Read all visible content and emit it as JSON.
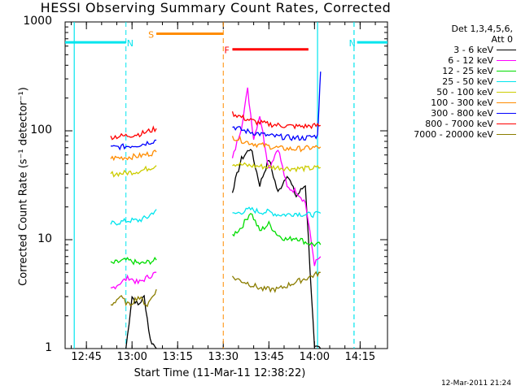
{
  "chart_data": {
    "type": "line",
    "title": "HESSI Observing Summary Count Rates, Corrected",
    "xlabel": "Start Time (11-Mar-11 12:38:22)",
    "ylabel": "Corrected Count Rate (s⁻¹ detector⁻¹)",
    "yscale": "log",
    "ylim": [
      1,
      1000
    ],
    "xlim": [
      "12:38",
      "14:24"
    ],
    "x_ticks": [
      "12:45",
      "13:00",
      "13:15",
      "13:30",
      "13:45",
      "14:00",
      "14:15"
    ],
    "y_ticks": [
      "1",
      "10",
      "100",
      "1000"
    ],
    "legend_placement": "outside-right",
    "legend_header": [
      "Det 1,3,4,5,6,",
      "Att 0"
    ],
    "series": [
      {
        "name": "3 - 6 keV",
        "color": "#000000",
        "segments": [
          {
            "x": [
              "12:58",
              "13:00",
              "13:02",
              "13:04",
              "13:06",
              "13:08"
            ],
            "y": [
              1,
              3,
              2.5,
              3,
              1.2,
              1
            ]
          },
          {
            "x": [
              "13:33",
              "13:36",
              "13:39",
              "13:42",
              "13:45",
              "13:48",
              "13:51",
              "13:54",
              "13:57",
              "14:00",
              "14:02"
            ],
            "y": [
              28,
              55,
              70,
              32,
              55,
              27,
              40,
              25,
              32,
              1,
              1
            ]
          }
        ]
      },
      {
        "name": "6 - 12 keV",
        "color": "#ff00ff",
        "segments": [
          {
            "x": [
              "12:53",
              "12:56",
              "12:59",
              "13:02",
              "13:05",
              "13:08"
            ],
            "y": [
              3.5,
              4,
              4.5,
              4,
              4.5,
              5
            ]
          },
          {
            "x": [
              "13:33",
              "13:36",
              "13:38",
              "13:40",
              "13:42",
              "13:45",
              "13:48",
              "13:51",
              "13:54",
              "13:57",
              "14:00",
              "14:02"
            ],
            "y": [
              55,
              110,
              240,
              85,
              140,
              45,
              70,
              30,
              28,
              22,
              6,
              7
            ]
          }
        ]
      },
      {
        "name": "12 - 25 keV",
        "color": "#00dd00",
        "segments": [
          {
            "x": [
              "12:53",
              "12:58",
              "13:03",
              "13:08"
            ],
            "y": [
              6,
              6.5,
              6,
              6.5
            ]
          },
          {
            "x": [
              "13:33",
              "13:36",
              "13:39",
              "13:42",
              "13:45",
              "13:48",
              "13:51",
              "13:54",
              "13:57",
              "14:00",
              "14:02"
            ],
            "y": [
              11,
              13,
              18,
              12,
              14,
              11,
              10,
              10.5,
              9.5,
              9,
              9
            ]
          }
        ]
      },
      {
        "name": "25 - 50 keV",
        "color": "#00e5ee",
        "segments": [
          {
            "x": [
              "12:53",
              "12:56",
              "12:59",
              "13:02",
              "13:05",
              "13:08"
            ],
            "y": [
              14,
              14.5,
              15,
              15,
              16,
              19
            ]
          },
          {
            "x": [
              "13:33",
              "13:36",
              "13:39",
              "13:42",
              "13:45",
              "13:48",
              "13:51",
              "13:54",
              "13:57",
              "14:00",
              "14:02"
            ],
            "y": [
              17,
              18,
              19,
              18,
              18,
              17,
              17,
              17.5,
              17,
              17,
              17.5
            ]
          }
        ]
      },
      {
        "name": "50 - 100 keV",
        "color": "#cccc00",
        "segments": [
          {
            "x": [
              "12:53",
              "12:58",
              "13:03",
              "13:08"
            ],
            "y": [
              40,
              41,
              43,
              48
            ]
          },
          {
            "x": [
              "13:33",
              "13:38",
              "13:43",
              "13:48",
              "13:53",
              "13:58",
              "14:02"
            ],
            "y": [
              50,
              48,
              47,
              46,
              45,
              45,
              46
            ]
          }
        ]
      },
      {
        "name": "100 - 300 keV",
        "color": "#ff8c00",
        "segments": [
          {
            "x": [
              "12:53",
              "12:58",
              "13:03",
              "13:08"
            ],
            "y": [
              56,
              57,
              59,
              64
            ]
          },
          {
            "x": [
              "13:33",
              "13:37",
              "13:41",
              "13:45",
              "13:49",
              "13:53",
              "13:57",
              "14:02"
            ],
            "y": [
              88,
              80,
              75,
              72,
              69,
              68,
              69,
              71
            ]
          }
        ]
      },
      {
        "name": "300 - 800 keV",
        "color": "#0000ff",
        "segments": [
          {
            "x": [
              "12:53",
              "12:58",
              "13:03",
              "13:08"
            ],
            "y": [
              70,
              72,
              75,
              82
            ]
          },
          {
            "x": [
              "13:33",
              "13:37",
              "13:41",
              "13:45",
              "13:49",
              "13:53",
              "13:57",
              "14:01",
              "14:02"
            ],
            "y": [
              110,
              100,
              95,
              90,
              88,
              86,
              86,
              90,
              350
            ]
          }
        ]
      },
      {
        "name": "800 - 7000 keV",
        "color": "#ff0000",
        "segments": [
          {
            "x": [
              "12:53",
              "12:58",
              "13:03",
              "13:08"
            ],
            "y": [
              88,
              90,
              94,
              105
            ]
          },
          {
            "x": [
              "13:33",
              "13:37",
              "13:41",
              "13:45",
              "13:49",
              "13:53",
              "13:57",
              "14:02"
            ],
            "y": [
              145,
              130,
              120,
              115,
              112,
              110,
              110,
              112
            ]
          }
        ]
      },
      {
        "name": "7000 - 20000 keV",
        "color": "#8b7d00",
        "segments": [
          {
            "x": [
              "12:53",
              "12:56",
              "12:59",
              "13:02",
              "13:05",
              "13:08"
            ],
            "y": [
              2.5,
              3,
              2.5,
              3,
              2.5,
              3.5
            ]
          },
          {
            "x": [
              "13:33",
              "13:38",
              "13:43",
              "13:48",
              "13:53",
              "13:58",
              "14:02"
            ],
            "y": [
              4.5,
              4,
              3.5,
              3.5,
              4,
              4.5,
              5
            ]
          }
        ]
      }
    ],
    "annotations": [
      {
        "label": "N",
        "color": "#00e5ee",
        "flag_level": 650,
        "x_start": "12:38",
        "x_end": "12:58",
        "dashed_marker": "12:58"
      },
      {
        "label": "N",
        "color": "#00e5ee",
        "flag_level": 650,
        "x_start": "14:14",
        "x_end": "14:24"
      },
      {
        "label": "S",
        "color": "#ff8c00",
        "flag_level": 780,
        "x_start": "13:08",
        "x_end": "13:30",
        "dashed_marker": "13:30"
      },
      {
        "label": "F",
        "color": "#ff0000",
        "flag_level": 560,
        "x_start": "13:33",
        "x_end": "13:58"
      }
    ],
    "vertical_markers": [
      {
        "x": "12:41",
        "color": "#00e5ee",
        "style": "solid"
      },
      {
        "x": "14:13",
        "color": "#00e5ee",
        "style": "dashed"
      },
      {
        "x": "14:01",
        "color": "#00e5ee",
        "style": "solid"
      }
    ]
  },
  "footer": {
    "timestamp": "12-Mar-2011 21:24"
  }
}
